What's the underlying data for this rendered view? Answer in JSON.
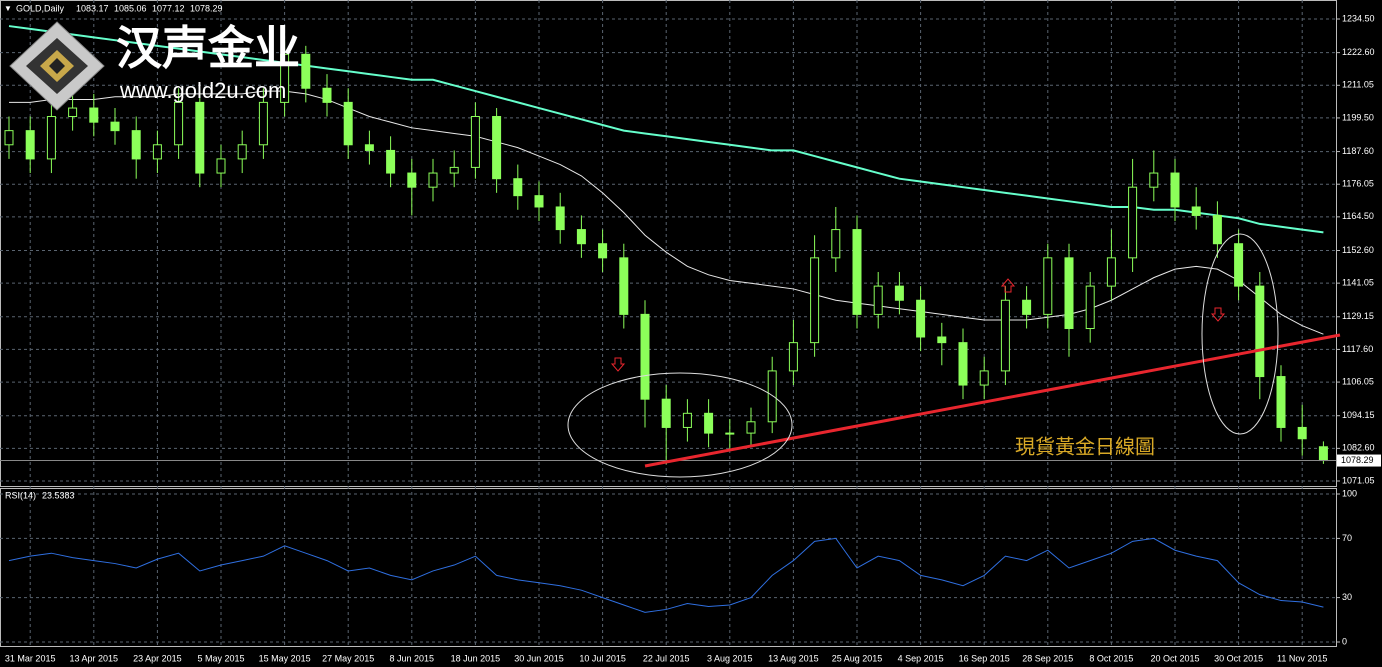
{
  "chart_data": [
    {
      "type": "candlestick",
      "title": "GOLD,Daily",
      "annotation": "現貨黃金日線圖",
      "categories": [
        null,
        "31 Mar 2015",
        null,
        null,
        "13 Apr 2015",
        null,
        null,
        "23 Apr 2015",
        null,
        null,
        "5 May 2015",
        null,
        null,
        "15 May 2015",
        null,
        null,
        "27 May 2015",
        null,
        null,
        "8 Jun 2015",
        null,
        null,
        "18 Jun 2015",
        null,
        null,
        "30 Jun 2015",
        null,
        null,
        "10 Jul 2015",
        null,
        null,
        "22 Jul 2015",
        null,
        null,
        "3 Aug 2015",
        null,
        null,
        "13 Aug 2015",
        null,
        null,
        "25 Aug 2015",
        null,
        null,
        "4 Sep 2015",
        null,
        null,
        "16 Sep 2015",
        null,
        null,
        "28 Sep 2015",
        null,
        null,
        "8 Oct 2015",
        null,
        null,
        "20 Oct 2015",
        null,
        null,
        "30 Oct 2015",
        null,
        null,
        "11 Nov 2015",
        null
      ],
      "open": [
        1190,
        1195,
        1185,
        1200,
        1203,
        1198,
        1195,
        1185,
        1190,
        1205,
        1180,
        1185,
        1190,
        1205,
        1222,
        1210,
        1205,
        1190,
        1188,
        1180,
        1175,
        1180,
        1182,
        1200,
        1178,
        1172,
        1168,
        1160,
        1155,
        1150,
        1130,
        1100,
        1090,
        1095,
        1088,
        1088,
        1092,
        1110,
        1120,
        1150,
        1160,
        1130,
        1140,
        1135,
        1122,
        1120,
        1105,
        1110,
        1135,
        1130,
        1150,
        1125,
        1140,
        1150,
        1175,
        1180,
        1168,
        1165,
        1155,
        1140,
        1108,
        1090,
        1083.17
      ],
      "high": [
        1200,
        1200,
        1205,
        1208,
        1208,
        1203,
        1200,
        1195,
        1210,
        1210,
        1190,
        1195,
        1210,
        1227,
        1225,
        1215,
        1210,
        1195,
        1193,
        1185,
        1185,
        1188,
        1205,
        1203,
        1183,
        1177,
        1173,
        1165,
        1160,
        1155,
        1135,
        1105,
        1100,
        1100,
        1093,
        1097,
        1115,
        1128,
        1158,
        1168,
        1165,
        1145,
        1145,
        1140,
        1127,
        1125,
        1115,
        1140,
        1140,
        1155,
        1155,
        1145,
        1160,
        1185,
        1188,
        1185,
        1175,
        1170,
        1160,
        1145,
        1112,
        1098,
        1085.06
      ],
      "low": [
        1185,
        1180,
        1180,
        1195,
        1193,
        1190,
        1178,
        1180,
        1185,
        1175,
        1175,
        1180,
        1185,
        1200,
        1205,
        1200,
        1185,
        1183,
        1175,
        1165,
        1170,
        1175,
        1178,
        1173,
        1167,
        1163,
        1155,
        1150,
        1145,
        1125,
        1090,
        1077,
        1085,
        1083,
        1082,
        1083,
        1088,
        1105,
        1115,
        1145,
        1125,
        1125,
        1130,
        1117,
        1112,
        1100,
        1100,
        1105,
        1125,
        1125,
        1115,
        1120,
        1135,
        1145,
        1170,
        1163,
        1160,
        1150,
        1135,
        1100,
        1085,
        1080,
        1077.12
      ],
      "close": [
        1195,
        1185,
        1200,
        1203,
        1198,
        1195,
        1185,
        1190,
        1205,
        1180,
        1185,
        1190,
        1205,
        1222,
        1210,
        1205,
        1190,
        1188,
        1180,
        1175,
        1180,
        1182,
        1200,
        1178,
        1172,
        1168,
        1160,
        1155,
        1150,
        1130,
        1100,
        1090,
        1095,
        1088,
        1088,
        1092,
        1110,
        1120,
        1150,
        1160,
        1130,
        1140,
        1135,
        1122,
        1120,
        1105,
        1110,
        1135,
        1130,
        1150,
        1125,
        1140,
        1150,
        1175,
        1180,
        1168,
        1165,
        1155,
        1140,
        1108,
        1090,
        1086,
        1078.29
      ],
      "up_fill": "#000000",
      "down_fill": "#8cff5a",
      "wick_color": "#8cff5a",
      "series": [
        {
          "color": "#66ffcc",
          "values": [
            1232,
            1231,
            1230,
            1229,
            1228,
            1227,
            1226,
            1225,
            1224,
            1223,
            1222,
            1221,
            1220,
            1219,
            1218,
            1217,
            1216,
            1215,
            1214,
            1213,
            1213,
            1211,
            1209,
            1207,
            1205,
            1203,
            1201,
            1199,
            1197,
            1195,
            1194,
            1193,
            1192,
            1191,
            1190,
            1189,
            1188,
            1188,
            1186,
            1184,
            1182,
            1180,
            1178,
            1177,
            1176,
            1175,
            1174,
            1173,
            1172,
            1171,
            1170,
            1169,
            1168,
            1168,
            1167,
            1167,
            1166,
            1165,
            1164,
            1162,
            1161,
            1160,
            1159
          ]
        },
        {
          "color": "#e8e8e8",
          "values": [
            1205,
            1205,
            1206,
            1206,
            1206,
            1207,
            1207,
            1207,
            1208,
            1208,
            1208,
            1208,
            1209,
            1209,
            1208,
            1206,
            1203,
            1200,
            1198,
            1196,
            1195,
            1194,
            1193,
            1191,
            1189,
            1186,
            1183,
            1179,
            1173,
            1166,
            1158,
            1152,
            1147,
            1144,
            1142,
            1141,
            1140,
            1139,
            1137,
            1135,
            1134,
            1133,
            1132,
            1131,
            1130,
            1129,
            1128,
            1128,
            1128,
            1129,
            1130,
            1132,
            1135,
            1139,
            1143,
            1146,
            1147,
            1146,
            1142,
            1136,
            1130,
            1126,
            1123
          ]
        }
      ],
      "ylim": [
        1068.93,
        1241.22
      ],
      "yticks": [
        {
          "value": 1234.5,
          "label": "1234.50"
        },
        {
          "value": 1222.6,
          "label": "1222.60"
        },
        1211.05,
        {
          "value": 1199.5,
          "label": "1199.50"
        },
        {
          "value": 1187.6,
          "label": "1187.60"
        },
        1176.05,
        {
          "value": 1164.5,
          "label": "1164.50"
        },
        {
          "value": 1152.6,
          "label": "1152.60"
        },
        1141.05,
        1129.15,
        {
          "value": 1117.6,
          "label": "1117.60"
        },
        1106.05,
        1094.15,
        {
          "value": 1082.6,
          "label": "1082.60"
        },
        1071.05
      ],
      "grid": true,
      "grid_color": "#5a6470"
    },
    {
      "type": "line",
      "title": "RSI(14)",
      "series": [
        {
          "color": "#2f6fe0",
          "values": [
            55,
            58,
            60,
            57,
            55,
            53,
            50,
            56,
            60,
            48,
            52,
            55,
            58,
            65,
            60,
            55,
            48,
            50,
            45,
            42,
            48,
            52,
            58,
            45,
            42,
            40,
            38,
            35,
            30,
            25,
            20,
            22,
            26,
            24,
            25,
            30,
            45,
            55,
            68,
            70,
            50,
            58,
            55,
            45,
            42,
            38,
            45,
            58,
            55,
            62,
            50,
            55,
            60,
            68,
            70,
            62,
            58,
            55,
            40,
            32,
            28,
            27,
            23.5383
          ]
        }
      ],
      "ylim": [
        -3.38,
        104.05
      ],
      "yticks": [
        100,
        70,
        30,
        0
      ],
      "grid": true
    }
  ],
  "watermark": {
    "brand": "汉声金业",
    "url": "www.gold2u.com"
  }
}
